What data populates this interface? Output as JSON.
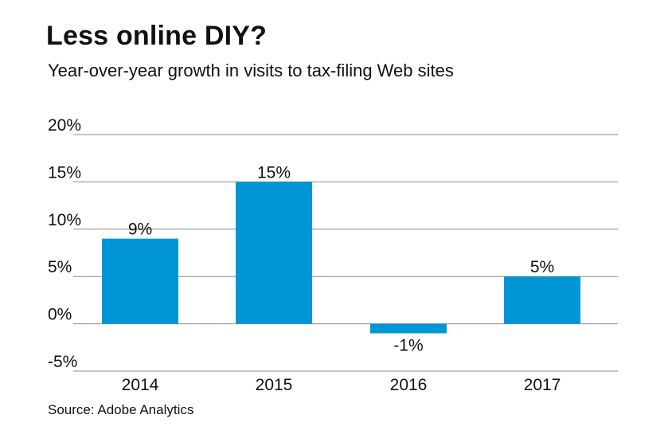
{
  "header": {
    "title": "Less online DIY?",
    "subtitle": "Year-over-year growth in visits to tax-filing Web sites"
  },
  "footer": {
    "source": "Source: Adobe Analytics"
  },
  "colors": {
    "bar": "#0096d6",
    "gridline": "#8a8a8a",
    "text": "#111111"
  },
  "chart_data": {
    "type": "bar",
    "title": "Less online DIY?",
    "subtitle": "Year-over-year growth in visits to tax-filing Web sites",
    "xlabel": "",
    "ylabel": "",
    "categories": [
      "2014",
      "2015",
      "2016",
      "2017"
    ],
    "values": [
      9,
      15,
      -1,
      5
    ],
    "data_labels": [
      "9%",
      "15%",
      "-1%",
      "5%"
    ],
    "ylim": [
      -5,
      20
    ],
    "yticks": [
      20,
      15,
      10,
      5,
      0,
      -5
    ],
    "ytick_labels": [
      "20%",
      "15%",
      "10%",
      "5%",
      "0%",
      "-5%"
    ],
    "grid": true,
    "legend": "none"
  }
}
